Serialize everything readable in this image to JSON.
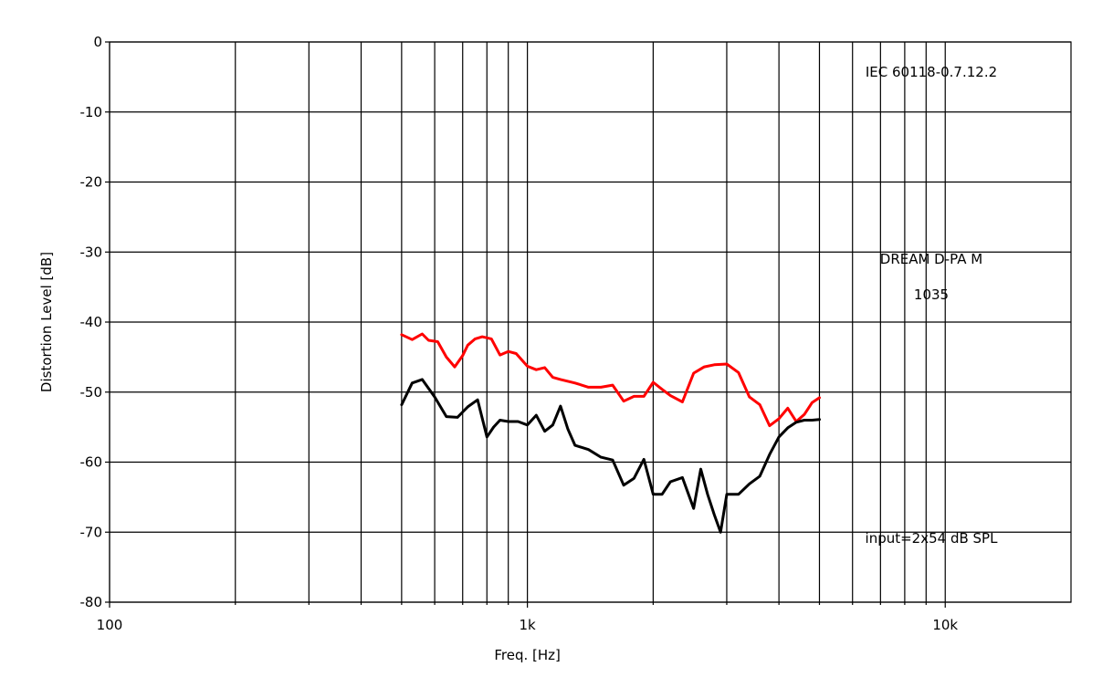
{
  "chart_data": {
    "type": "line",
    "title": "",
    "xlabel": "Freq. [Hz]",
    "ylabel": "Distortion Level [dB]",
    "x_scale": "log",
    "xlim": [
      100,
      20000
    ],
    "ylim": [
      -80,
      0
    ],
    "grid": true,
    "x_major_ticks": [
      100,
      1000,
      10000
    ],
    "x_tick_labels": [
      "100",
      "1k",
      "10k"
    ],
    "x_minor_ticks": [
      200,
      300,
      400,
      500,
      600,
      700,
      800,
      900,
      2000,
      3000,
      4000,
      5000,
      6000,
      7000,
      8000,
      9000
    ],
    "y_ticks": [
      0,
      -10,
      -20,
      -30,
      -40,
      -50,
      -60,
      -70,
      -80
    ],
    "y_tick_labels": [
      "0",
      "-10",
      "-20",
      "-30",
      "-40",
      "-50",
      "-60",
      "-70",
      "-80"
    ],
    "annotations": [
      {
        "text": "IEC 60118-0.7.12.2",
        "position": "top-right"
      },
      {
        "text": "DREAM D-PA M",
        "position": "middle-right"
      },
      {
        "text": "1035",
        "position": "middle-right"
      },
      {
        "text": "input=2x54 dB SPL",
        "position": "bottom-right"
      }
    ],
    "series": [
      {
        "color": "#ff0000",
        "x": [
          500,
          530,
          560,
          580,
          610,
          640,
          670,
          700,
          720,
          750,
          780,
          820,
          860,
          900,
          940,
          1000,
          1050,
          1100,
          1150,
          1200,
          1300,
          1400,
          1500,
          1600,
          1700,
          1800,
          1900,
          2000,
          2100,
          2200,
          2350,
          2500,
          2650,
          2800,
          3000,
          3200,
          3400,
          3600,
          3800,
          4000,
          4200,
          4400,
          4600,
          4800,
          5000
        ],
        "y": [
          -41.8,
          -42.5,
          -41.7,
          -42.6,
          -42.8,
          -45.0,
          -46.4,
          -44.8,
          -43.3,
          -42.4,
          -42.1,
          -42.4,
          -44.7,
          -44.2,
          -44.5,
          -46.3,
          -46.8,
          -46.5,
          -47.9,
          -48.2,
          -48.7,
          -49.3,
          -49.3,
          -49.0,
          -51.3,
          -50.6,
          -50.6,
          -48.6,
          -49.6,
          -50.5,
          -51.4,
          -47.3,
          -46.4,
          -46.1,
          -46.0,
          -47.2,
          -50.7,
          -51.8,
          -54.8,
          -53.8,
          -52.3,
          -54.2,
          -53.2,
          -51.5,
          -50.8
        ]
      },
      {
        "color": "#000000",
        "x": [
          500,
          530,
          560,
          600,
          640,
          680,
          720,
          760,
          800,
          830,
          860,
          900,
          950,
          1000,
          1050,
          1100,
          1150,
          1200,
          1250,
          1300,
          1400,
          1500,
          1600,
          1700,
          1800,
          1900,
          2000,
          2100,
          2200,
          2350,
          2500,
          2600,
          2700,
          2800,
          2900,
          3000,
          3200,
          3400,
          3600,
          3800,
          4000,
          4200,
          4400,
          4600,
          4800,
          5000
        ],
        "y": [
          -51.8,
          -48.7,
          -48.2,
          -50.7,
          -53.5,
          -53.6,
          -52.1,
          -51.1,
          -56.4,
          -55.0,
          -54.0,
          -54.2,
          -54.2,
          -54.7,
          -53.3,
          -55.6,
          -54.7,
          -52.0,
          -55.3,
          -57.6,
          -58.2,
          -59.3,
          -59.7,
          -63.3,
          -62.3,
          -59.6,
          -64.6,
          -64.6,
          -62.8,
          -62.2,
          -66.6,
          -61.0,
          -64.6,
          -67.5,
          -70.0,
          -64.6,
          -64.6,
          -63.1,
          -62.0,
          -58.9,
          -56.4,
          -55.1,
          -54.3,
          -54.0,
          -54.0,
          -53.9
        ]
      }
    ]
  }
}
